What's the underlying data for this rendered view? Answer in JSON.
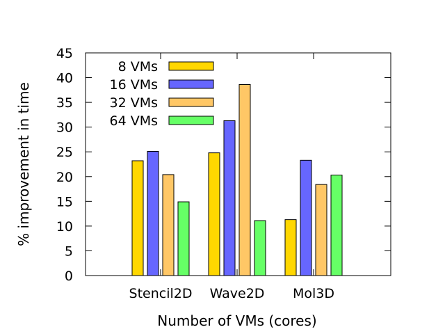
{
  "chart_data": {
    "type": "bar",
    "title": "",
    "xlabel": "Number of VMs (cores)",
    "ylabel": "% improvement in time",
    "ylim": [
      0,
      45
    ],
    "yticks": [
      0,
      5,
      10,
      15,
      20,
      25,
      30,
      35,
      40,
      45
    ],
    "categories": [
      "Stencil2D",
      "Wave2D",
      "Mol3D"
    ],
    "series": [
      {
        "name": "8 VMs",
        "color": "#ffd700",
        "values": [
          23.2,
          24.8,
          11.3
        ]
      },
      {
        "name": "16 VMs",
        "color": "#6666ff",
        "values": [
          25.1,
          31.3,
          23.3
        ]
      },
      {
        "name": "32 VMs",
        "color": "#ffc766",
        "values": [
          20.4,
          38.6,
          18.4
        ]
      },
      {
        "name": "64 VMs",
        "color": "#66ff66",
        "values": [
          14.9,
          11.1,
          20.3
        ]
      }
    ],
    "legend_position": "top-left",
    "grid": false
  }
}
